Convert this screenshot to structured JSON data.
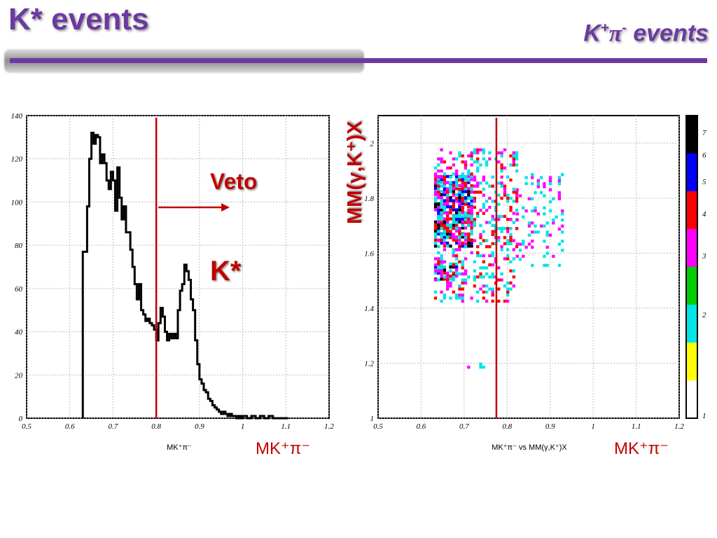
{
  "header": {
    "title": "K* events",
    "subtitle_main": "K",
    "subtitle_sup1": "+",
    "subtitle_pi": "π",
    "subtitle_sup2": "-",
    "subtitle_rest": " events"
  },
  "colors": {
    "accent": "#6b3aa0",
    "annotation": "#c00000",
    "line": "#000000"
  },
  "chart_data": [
    {
      "type": "histogram",
      "xlabel": "MK⁺π⁻",
      "annotation_axis_label": "MK⁺π⁻",
      "xlim": [
        0.5,
        1.2
      ],
      "ylim": [
        0,
        140
      ],
      "xticks": [
        "0.5",
        "0.6",
        "0.7",
        "0.8",
        "0.9",
        "1",
        "1.1",
        "1.2"
      ],
      "yticks": [
        "0",
        "20",
        "40",
        "60",
        "80",
        "100",
        "120",
        "140"
      ],
      "grid": true,
      "cut_line_x": 0.8,
      "annotations": {
        "veto": "Veto",
        "kstar": "K*"
      },
      "bins": [
        [
          0.63,
          77
        ],
        [
          0.64,
          98
        ],
        [
          0.645,
          120
        ],
        [
          0.65,
          132
        ],
        [
          0.655,
          127
        ],
        [
          0.66,
          131
        ],
        [
          0.665,
          130
        ],
        [
          0.67,
          118
        ],
        [
          0.675,
          122
        ],
        [
          0.68,
          118
        ],
        [
          0.685,
          110
        ],
        [
          0.69,
          106
        ],
        [
          0.695,
          114
        ],
        [
          0.7,
          110
        ],
        [
          0.705,
          96
        ],
        [
          0.71,
          116
        ],
        [
          0.715,
          102
        ],
        [
          0.72,
          92
        ],
        [
          0.725,
          98
        ],
        [
          0.73,
          86
        ],
        [
          0.735,
          86
        ],
        [
          0.74,
          78
        ],
        [
          0.745,
          70
        ],
        [
          0.75,
          62
        ],
        [
          0.755,
          55
        ],
        [
          0.76,
          62
        ],
        [
          0.765,
          50
        ],
        [
          0.77,
          48
        ],
        [
          0.775,
          45
        ],
        [
          0.78,
          46
        ],
        [
          0.785,
          44
        ],
        [
          0.79,
          43
        ],
        [
          0.795,
          41
        ],
        [
          0.8,
          36
        ],
        [
          0.805,
          44
        ],
        [
          0.81,
          51
        ],
        [
          0.815,
          47
        ],
        [
          0.82,
          40
        ],
        [
          0.825,
          36
        ],
        [
          0.83,
          39
        ],
        [
          0.835,
          37
        ],
        [
          0.84,
          39
        ],
        [
          0.845,
          37
        ],
        [
          0.85,
          50
        ],
        [
          0.855,
          59
        ],
        [
          0.86,
          62
        ],
        [
          0.865,
          71
        ],
        [
          0.87,
          68
        ],
        [
          0.875,
          64
        ],
        [
          0.88,
          55
        ],
        [
          0.885,
          50
        ],
        [
          0.89,
          36
        ],
        [
          0.895,
          25
        ],
        [
          0.9,
          18
        ],
        [
          0.905,
          16
        ],
        [
          0.91,
          13
        ],
        [
          0.915,
          12
        ],
        [
          0.92,
          9
        ],
        [
          0.925,
          8
        ],
        [
          0.93,
          6
        ],
        [
          0.935,
          5
        ],
        [
          0.94,
          4
        ],
        [
          0.945,
          3
        ],
        [
          0.95,
          2
        ],
        [
          0.955,
          3
        ],
        [
          0.96,
          2
        ],
        [
          0.965,
          1
        ],
        [
          0.97,
          2
        ],
        [
          0.975,
          1
        ],
        [
          0.98,
          1
        ],
        [
          0.985,
          0
        ],
        [
          0.99,
          1
        ],
        [
          0.995,
          0
        ],
        [
          1.0,
          1
        ],
        [
          1.01,
          0
        ],
        [
          1.02,
          1
        ],
        [
          1.03,
          0
        ],
        [
          1.04,
          1
        ],
        [
          1.05,
          0
        ],
        [
          1.06,
          1
        ],
        [
          1.07,
          0
        ],
        [
          1.1,
          0
        ]
      ]
    },
    {
      "type": "heatmap",
      "xlabel": "MK⁺π⁻ vs MM(γ,K⁺)X",
      "ylabel": "MM(γ,K⁺)X",
      "annotation_axis_label": "MK⁺π⁻",
      "xlim": [
        0.5,
        1.2
      ],
      "ylim": [
        1.0,
        2.1
      ],
      "xticks": [
        "0.5",
        "0.6",
        "0.7",
        "0.8",
        "0.9",
        "1",
        "1.1",
        "1.2"
      ],
      "yticks": [
        "1",
        "1.2",
        "1.4",
        "1.6",
        "1.8",
        "2"
      ],
      "grid": true,
      "cut_line_x": 0.775,
      "color_scale": {
        "labels": [
          "1",
          "2",
          "3",
          "4",
          "5",
          "6",
          "7"
        ],
        "colors": [
          "#ffffff",
          "#ffff00",
          "#00e5e5",
          "#00cc00",
          "#ff00ff",
          "#ff0000",
          "#0000ff",
          "#000000"
        ]
      },
      "density_regions": [
        {
          "x": [
            0.63,
            0.72
          ],
          "y": [
            1.62,
            1.88
          ],
          "level": "high"
        },
        {
          "x": [
            0.63,
            0.68
          ],
          "y": [
            1.5,
            1.56
          ],
          "level": "high"
        },
        {
          "x": [
            0.63,
            0.82
          ],
          "y": [
            1.42,
            1.98
          ],
          "level": "medium"
        },
        {
          "x": [
            0.82,
            0.93
          ],
          "y": [
            1.55,
            1.88
          ],
          "level": "low"
        },
        {
          "x": [
            0.7,
            0.76
          ],
          "y": [
            1.18,
            1.21
          ],
          "level": "low"
        }
      ]
    }
  ]
}
